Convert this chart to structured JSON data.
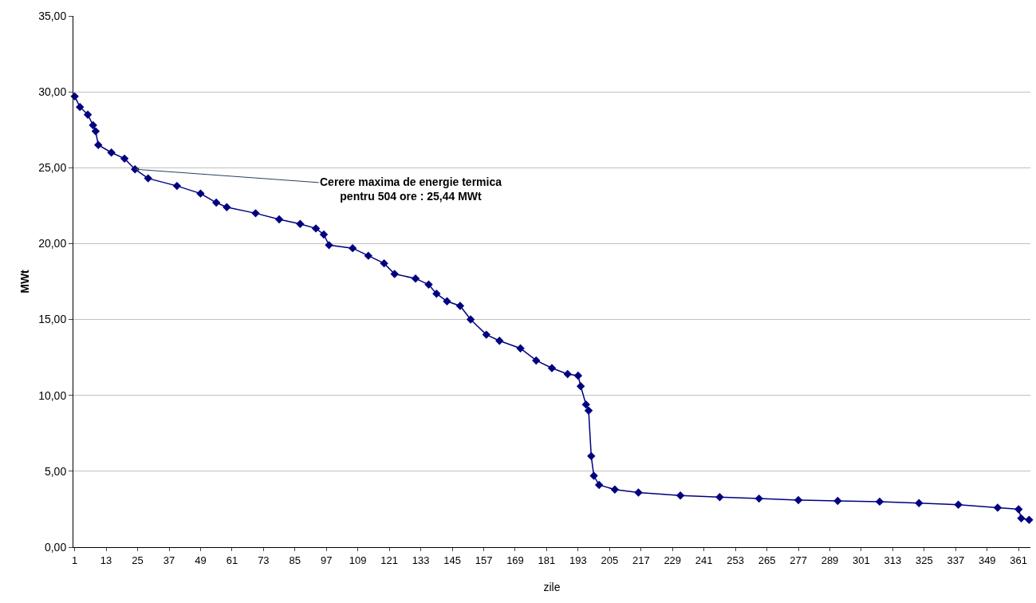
{
  "chart_data": {
    "type": "line",
    "xlabel": "zile",
    "ylabel": "MWt",
    "x": [
      1,
      3,
      6,
      8,
      9,
      10,
      15,
      20,
      24,
      29,
      40,
      49,
      55,
      59,
      70,
      79,
      87,
      93,
      96,
      98,
      107,
      113,
      119,
      123,
      131,
      136,
      139,
      143,
      148,
      152,
      158,
      163,
      171,
      177,
      183,
      189,
      193,
      194,
      196,
      197,
      198,
      199,
      201,
      207,
      216,
      232,
      247,
      262,
      277,
      292,
      308,
      323,
      338,
      353,
      361,
      362,
      365
    ],
    "series": [
      {
        "color": "#000080",
        "values": [
          29.7,
          29.0,
          28.5,
          27.8,
          27.4,
          26.5,
          26.0,
          25.6,
          24.9,
          24.3,
          23.8,
          23.3,
          22.7,
          22.4,
          22.0,
          21.6,
          21.3,
          21.0,
          20.6,
          19.9,
          19.7,
          19.2,
          18.7,
          18.0,
          17.7,
          17.3,
          16.7,
          16.2,
          15.9,
          15.0,
          14.0,
          13.6,
          13.1,
          12.3,
          11.8,
          11.4,
          11.3,
          10.6,
          9.4,
          9.0,
          6.0,
          4.7,
          4.1,
          3.8,
          3.6,
          3.4,
          3.3,
          3.2,
          3.1,
          3.05,
          3.0,
          2.9,
          2.8,
          2.6,
          2.5,
          1.9,
          1.8
        ]
      }
    ],
    "annotations": [
      {
        "text": "Cerere maxima de energie termica\npentru 504 ore : 25,44 MWt",
        "x": 24,
        "y": 24.9
      }
    ],
    "xlim": [
      0.5,
      365.5
    ],
    "xticks": [
      1,
      13,
      25,
      37,
      49,
      61,
      73,
      85,
      97,
      109,
      121,
      133,
      145,
      157,
      169,
      181,
      193,
      205,
      217,
      229,
      241,
      253,
      265,
      277,
      289,
      301,
      313,
      325,
      337,
      349,
      361
    ],
    "ylim": [
      0,
      35
    ],
    "yticks": [
      {
        "value": 0,
        "label": "0,00"
      },
      {
        "value": 5,
        "label": "5,00"
      },
      {
        "value": 10,
        "label": "10,00"
      },
      {
        "value": 15,
        "label": "15,00"
      },
      {
        "value": 20,
        "label": "20,00"
      },
      {
        "value": 25,
        "label": "25,00"
      },
      {
        "value": 30,
        "label": "30,00"
      },
      {
        "value": 35,
        "label": "35,00"
      }
    ],
    "grid": "y",
    "marker": "diamond",
    "line_style": "solid"
  }
}
